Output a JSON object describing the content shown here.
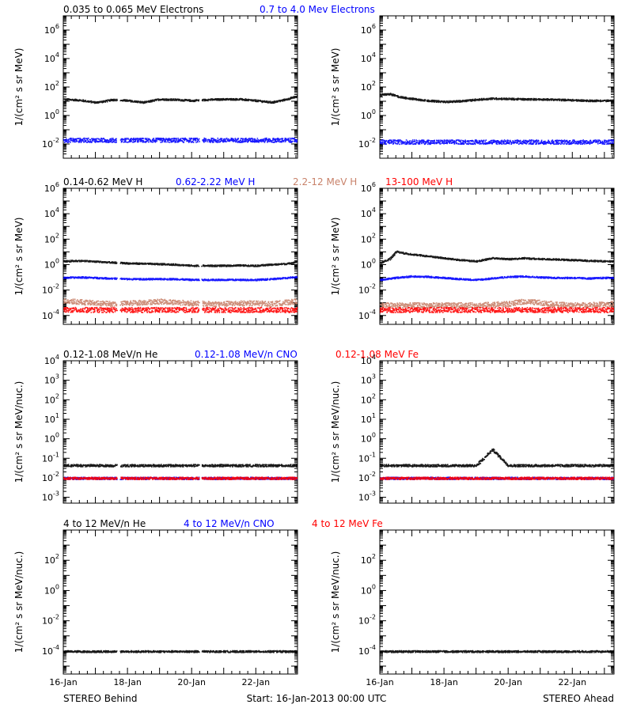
{
  "footer": {
    "left": "STEREO Behind",
    "center": "Start: 16-Jan-2013 00:00 UTC",
    "right": "STEREO Ahead"
  },
  "x_ticks": [
    "16-Jan",
    "18-Jan",
    "20-Jan",
    "22-Jan"
  ],
  "colors": {
    "black": "#000000",
    "blue": "#0000ff",
    "salmon": "#c8826a",
    "red": "#ff0000"
  },
  "chart_data": [
    {
      "type": "scatter",
      "panel": "electrons",
      "legend": [
        {
          "label": "0.035 to 0.065 MeV Electrons",
          "color": "#000000"
        },
        {
          "label": "0.7 to 4.0 Mev Electrons",
          "color": "#0000ff"
        }
      ],
      "ylabel": "1/(cm² s sr MeV)",
      "yscale": "log",
      "ylim": [
        0.001,
        10000000
      ],
      "ytick_exponents": [
        -2,
        0,
        2,
        4,
        6
      ],
      "xlim": [
        0,
        7.3
      ],
      "x_unit": "days since 16-Jan-2013 00:00 UTC",
      "behind": [
        {
          "name": "0.035 to 0.065 MeV Electrons",
          "color": "#000000",
          "x": [
            0,
            0.5,
            1,
            1.3,
            1.5,
            2.0,
            2.5,
            3.0,
            3.5,
            4.0,
            4.5,
            5.0,
            5.5,
            6.0,
            6.5,
            7.0,
            7.3
          ],
          "y": [
            15,
            13,
            9,
            11,
            14,
            12,
            9,
            15,
            14,
            12,
            14,
            15,
            15,
            12,
            9,
            16,
            25
          ]
        },
        {
          "name": "0.7 to 4.0 Mev Electrons",
          "color": "#0000ff",
          "x": [
            0,
            1,
            2,
            3,
            4,
            5,
            6,
            7,
            7.3
          ],
          "y": [
            0.02,
            0.02,
            0.02,
            0.02,
            0.02,
            0.02,
            0.02,
            0.02,
            0.02
          ]
        }
      ],
      "ahead": [
        {
          "name": "0.035 to 0.065 MeV Electrons",
          "color": "#000000",
          "x": [
            0,
            0.3,
            0.6,
            1.0,
            1.5,
            2.0,
            2.5,
            3.0,
            3.5,
            4.0,
            4.5,
            5.0,
            5.5,
            6.0,
            6.5,
            7.0,
            7.3
          ],
          "y": [
            30,
            35,
            22,
            16,
            12,
            10,
            11,
            14,
            17,
            16,
            15,
            15,
            14,
            13,
            12,
            12,
            12
          ]
        },
        {
          "name": "0.7 to 4.0 Mev Electrons",
          "color": "#0000ff",
          "x": [
            0,
            1,
            2,
            3,
            4,
            5,
            6,
            7,
            7.3
          ],
          "y": [
            0.015,
            0.015,
            0.015,
            0.015,
            0.015,
            0.015,
            0.015,
            0.015,
            0.015
          ]
        }
      ]
    },
    {
      "type": "scatter",
      "panel": "protons",
      "legend": [
        {
          "label": "0.14-0.62 MeV H",
          "color": "#000000"
        },
        {
          "label": "0.62-2.22 MeV H",
          "color": "#0000ff"
        },
        {
          "label": "2.2-12 MeV H",
          "color": "#c8826a"
        },
        {
          "label": "13-100 MeV H",
          "color": "#ff0000"
        }
      ],
      "ylabel": "1/(cm² s sr MeV)",
      "yscale": "log",
      "ylim": [
        2e-05,
        1000000
      ],
      "ytick_exponents": [
        -4,
        -2,
        0,
        2,
        4,
        6
      ],
      "xlim": [
        0,
        7.3
      ],
      "x_unit": "days since 16-Jan-2013 00:00 UTC",
      "behind": [
        {
          "name": "0.14-0.62 MeV H",
          "color": "#000000",
          "x": [
            0,
            0.5,
            1.0,
            1.5,
            2.0,
            2.5,
            3.0,
            3.5,
            4.0,
            4.5,
            5.0,
            5.5,
            6.0,
            6.5,
            7.0,
            7.3
          ],
          "y": [
            2.0,
            2.2,
            1.9,
            1.6,
            1.4,
            1.3,
            1.2,
            1.1,
            0.9,
            0.9,
            0.9,
            0.95,
            0.9,
            1.1,
            1.3,
            2.0
          ]
        },
        {
          "name": "0.62-2.22 MeV H",
          "color": "#0000ff",
          "x": [
            0,
            0.5,
            1.0,
            1.5,
            2.0,
            2.5,
            3.0,
            3.5,
            4.0,
            4.5,
            5.0,
            5.5,
            6.0,
            6.5,
            7.0,
            7.3
          ],
          "y": [
            0.1,
            0.11,
            0.1,
            0.09,
            0.08,
            0.08,
            0.08,
            0.08,
            0.07,
            0.07,
            0.07,
            0.07,
            0.07,
            0.08,
            0.1,
            0.12
          ]
        },
        {
          "name": "2.2-12 MeV H",
          "color": "#c8826a",
          "x": [
            0,
            0.5,
            1.0,
            1.5,
            2.0,
            2.5,
            3.0,
            3.5,
            4.0,
            4.5,
            5.0,
            5.5,
            6.0,
            6.5,
            7.0,
            7.3
          ],
          "y": [
            0.0015,
            0.0013,
            0.001,
            0.0009,
            0.001,
            0.0012,
            0.0014,
            0.0012,
            0.001,
            0.0009,
            0.0009,
            0.001,
            0.001,
            0.0009,
            0.0012,
            0.0015
          ]
        },
        {
          "name": "13-100 MeV H",
          "color": "#ff0000",
          "x": [
            0,
            1,
            2,
            3,
            4,
            5,
            6,
            7,
            7.3
          ],
          "y": [
            0.0003,
            0.0003,
            0.0003,
            0.0003,
            0.0003,
            0.0003,
            0.0003,
            0.0003,
            0.0003
          ]
        }
      ],
      "ahead": [
        {
          "name": "0.14-0.62 MeV H",
          "color": "#000000",
          "x": [
            0,
            0.3,
            0.5,
            0.7,
            1.0,
            1.5,
            2.0,
            2.5,
            3.0,
            3.5,
            4.0,
            4.5,
            5.0,
            5.5,
            6.0,
            6.5,
            7.0,
            7.3
          ],
          "y": [
            1.5,
            3,
            12,
            9,
            7,
            5,
            3.5,
            2.5,
            2.0,
            3.5,
            3.0,
            3.5,
            3.0,
            2.8,
            2.5,
            2.2,
            2.0,
            2.0
          ]
        },
        {
          "name": "0.62-2.22 MeV H",
          "color": "#0000ff",
          "x": [
            0,
            0.5,
            1.0,
            1.5,
            2.0,
            2.5,
            3.0,
            3.5,
            4.0,
            4.5,
            5.0,
            5.5,
            6.0,
            6.5,
            7.0,
            7.3
          ],
          "y": [
            0.07,
            0.1,
            0.13,
            0.12,
            0.1,
            0.08,
            0.07,
            0.09,
            0.12,
            0.13,
            0.11,
            0.1,
            0.1,
            0.09,
            0.1,
            0.1
          ]
        },
        {
          "name": "2.2-12 MeV H",
          "color": "#c8826a",
          "x": [
            0,
            1,
            2,
            3,
            3.5,
            4.0,
            4.5,
            5.0,
            5.5,
            6,
            7,
            7.3
          ],
          "y": [
            0.0007,
            0.0007,
            0.0007,
            0.0007,
            0.0008,
            0.0009,
            0.0014,
            0.0011,
            0.0008,
            0.0007,
            0.0008,
            0.001
          ]
        },
        {
          "name": "13-100 MeV H",
          "color": "#ff0000",
          "x": [
            0,
            1,
            2,
            3,
            4,
            5,
            6,
            7,
            7.3
          ],
          "y": [
            0.0003,
            0.0003,
            0.0003,
            0.0003,
            0.0003,
            0.0003,
            0.0003,
            0.0003,
            0.0003
          ]
        }
      ]
    },
    {
      "type": "scatter",
      "panel": "low-energy-ions",
      "legend": [
        {
          "label": "0.12-1.08 MeV/n He",
          "color": "#000000"
        },
        {
          "label": "0.12-1.08 MeV/n CNO",
          "color": "#0000ff"
        },
        {
          "label": "0.12-1.08 MeV Fe",
          "color": "#ff0000"
        }
      ],
      "ylabel": "1/(cm² s sr MeV/nuc.)",
      "yscale": "log",
      "ylim": [
        0.0005,
        10000
      ],
      "ytick_exponents": [
        -3,
        -2,
        -1,
        0,
        1,
        2,
        3,
        4
      ],
      "xlim": [
        0,
        7.3
      ],
      "x_unit": "days since 16-Jan-2013 00:00 UTC",
      "behind": [
        {
          "name": "0.12-1.08 MeV/n He",
          "color": "#000000",
          "x": [
            0,
            1,
            2,
            3,
            4,
            5,
            6,
            7,
            7.3
          ],
          "y": [
            0.045,
            0.045,
            0.045,
            0.045,
            0.045,
            0.045,
            0.045,
            0.045,
            0.045
          ]
        },
        {
          "name": "0.12-1.08 MeV/n CNO",
          "color": "#0000ff",
          "x": [
            0,
            1,
            2,
            3,
            4,
            5,
            6,
            7,
            7.3
          ],
          "y": [
            0.01,
            0.01,
            0.01,
            0.01,
            0.01,
            0.01,
            0.01,
            0.01,
            0.01
          ]
        },
        {
          "name": "0.12-1.08 MeV Fe",
          "color": "#ff0000",
          "x": [
            0,
            1,
            2,
            3,
            4,
            5,
            6,
            7,
            7.3
          ],
          "y": [
            0.01,
            0.01,
            0.01,
            0.01,
            0.01,
            0.01,
            0.01,
            0.01,
            0.01
          ]
        }
      ],
      "ahead": [
        {
          "name": "0.12-1.08 MeV/n He",
          "color": "#000000",
          "x": [
            0,
            1,
            2,
            3,
            3.5,
            4,
            5,
            6,
            7,
            7.3
          ],
          "y": [
            0.045,
            0.045,
            0.045,
            0.045,
            0.3,
            0.045,
            0.045,
            0.045,
            0.045,
            0.045
          ]
        },
        {
          "name": "0.12-1.08 MeV/n CNO",
          "color": "#0000ff",
          "x": [
            0,
            1,
            2,
            3,
            4,
            5,
            6,
            7,
            7.3
          ],
          "y": [
            0.01,
            0.01,
            0.01,
            0.01,
            0.01,
            0.01,
            0.01,
            0.01,
            0.01
          ]
        },
        {
          "name": "0.12-1.08 MeV Fe",
          "color": "#ff0000",
          "x": [
            0,
            1,
            2,
            3,
            4,
            5,
            6,
            7,
            7.3
          ],
          "y": [
            0.01,
            0.01,
            0.01,
            0.01,
            0.01,
            0.01,
            0.01,
            0.01,
            0.01
          ]
        }
      ]
    },
    {
      "type": "scatter",
      "panel": "high-energy-ions",
      "legend": [
        {
          "label": "4 to 12 MeV/n He",
          "color": "#000000"
        },
        {
          "label": "4 to 12 MeV/n CNO",
          "color": "#0000ff"
        },
        {
          "label": "4 to 12 MeV Fe",
          "color": "#ff0000"
        }
      ],
      "ylabel": "1/(cm² s sr MeV/nuc.)",
      "yscale": "log",
      "ylim": [
        3e-06,
        10000
      ],
      "ytick_exponents": [
        -4,
        -2,
        0,
        2
      ],
      "xlim": [
        0,
        7.3
      ],
      "x_unit": "days since 16-Jan-2013 00:00 UTC",
      "behind": [
        {
          "name": "4 to 12 MeV/n He",
          "color": "#000000",
          "x": [
            0,
            1,
            2,
            3,
            4,
            5,
            6,
            7,
            7.3
          ],
          "y": [
            0.0001,
            0.0001,
            0.0001,
            0.0001,
            0.0001,
            0.0001,
            0.0001,
            0.0001,
            0.0001
          ]
        }
      ],
      "ahead": [
        {
          "name": "4 to 12 MeV/n He",
          "color": "#000000",
          "x": [
            0,
            1,
            2,
            3,
            4,
            5,
            6,
            7,
            7.3
          ],
          "y": [
            0.0001,
            0.0001,
            0.0001,
            0.0001,
            0.0001,
            0.0001,
            0.0001,
            0.0001,
            0.0001
          ]
        }
      ]
    }
  ]
}
